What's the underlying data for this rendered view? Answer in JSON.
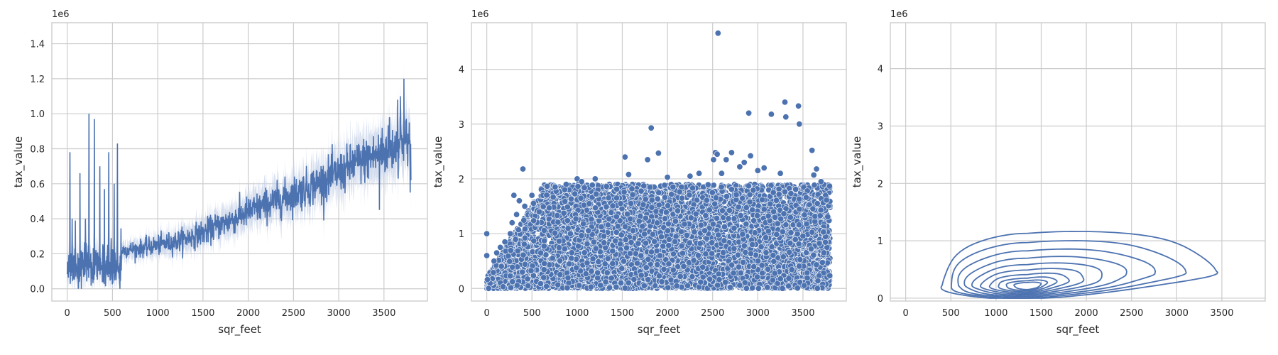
{
  "colors": {
    "series": "#4c72b0",
    "band": "#c5d1e8",
    "grid": "#cccccc",
    "text": "#262626",
    "point_edge": "#ffffff"
  },
  "chart_data": [
    {
      "type": "line",
      "xlabel": "sqr_feet",
      "ylabel": "tax_value",
      "y_offset_label": "1e6",
      "xlim": [
        -170,
        3980
      ],
      "ylim": [
        -0.07,
        1.52
      ],
      "xticks": [
        0,
        500,
        1000,
        1500,
        2000,
        2500,
        3000,
        3500
      ],
      "yticks": [
        0.0,
        0.2,
        0.4,
        0.6,
        0.8,
        1.0,
        1.2,
        1.4
      ],
      "ytick_labels": [
        "0.0",
        "0.2",
        "0.4",
        "0.6",
        "0.8",
        "1.0",
        "1.2",
        "1.4"
      ],
      "grid": true,
      "legend": "none",
      "confidence_band": true,
      "series_mean_points": [
        [
          0,
          0.78
        ],
        [
          600,
          0.22
        ],
        [
          800,
          0.23
        ],
        [
          1000,
          0.25
        ],
        [
          1200,
          0.27
        ],
        [
          1500,
          0.32
        ],
        [
          1800,
          0.39
        ],
        [
          2000,
          0.44
        ],
        [
          2200,
          0.48
        ],
        [
          2500,
          0.54
        ],
        [
          2800,
          0.61
        ],
        [
          3000,
          0.66
        ],
        [
          3200,
          0.72
        ],
        [
          3400,
          0.76
        ],
        [
          3500,
          0.78
        ],
        [
          3600,
          0.8
        ],
        [
          3700,
          0.85
        ],
        [
          3780,
          0.83
        ]
      ],
      "early_spikes": [
        [
          30,
          0.78
        ],
        [
          55,
          0.4
        ],
        [
          90,
          0.39
        ],
        [
          140,
          0.66
        ],
        [
          200,
          0.4
        ],
        [
          240,
          1.0
        ],
        [
          300,
          0.97
        ],
        [
          360,
          0.7
        ],
        [
          410,
          0.57
        ],
        [
          460,
          0.78
        ],
        [
          520,
          0.6
        ],
        [
          555,
          0.83
        ]
      ],
      "late_spikes": [
        [
          3720,
          1.2
        ],
        [
          3650,
          1.08
        ],
        [
          3680,
          1.1
        ],
        [
          3560,
          0.98
        ],
        [
          3480,
          0.92
        ],
        [
          3450,
          0.45
        ],
        [
          3780,
          0.95
        ],
        [
          3790,
          0.55
        ]
      ]
    },
    {
      "type": "scatter",
      "xlabel": "sqr_feet",
      "ylabel": "tax_value",
      "y_offset_label": "1e6",
      "xlim": [
        -170,
        3980
      ],
      "ylim": [
        -0.23,
        4.85
      ],
      "xticks": [
        0,
        500,
        1000,
        1500,
        2000,
        2500,
        3000,
        3500
      ],
      "yticks": [
        0,
        1,
        2,
        3,
        4
      ],
      "ytick_labels": [
        "0",
        "1",
        "2",
        "3",
        "4"
      ],
      "grid": true,
      "legend": "none",
      "dense_region": {
        "x_range": [
          0,
          3800
        ],
        "y_range": [
          0,
          1.9
        ]
      },
      "outliers": [
        [
          0,
          1.0
        ],
        [
          0,
          0.6
        ],
        [
          20,
          0.0
        ],
        [
          80,
          0.5
        ],
        [
          110,
          0.65
        ],
        [
          150,
          0.75
        ],
        [
          200,
          0.85
        ],
        [
          260,
          1.0
        ],
        [
          280,
          1.2
        ],
        [
          300,
          1.7
        ],
        [
          330,
          1.35
        ],
        [
          360,
          1.6
        ],
        [
          400,
          2.18
        ],
        [
          420,
          1.5
        ],
        [
          500,
          1.7
        ],
        [
          1000,
          2.0
        ],
        [
          1050,
          1.95
        ],
        [
          1200,
          2.0
        ],
        [
          1530,
          2.4
        ],
        [
          1570,
          2.08
        ],
        [
          1780,
          2.35
        ],
        [
          1820,
          2.93
        ],
        [
          1900,
          2.47
        ],
        [
          2000,
          2.03
        ],
        [
          2250,
          2.05
        ],
        [
          2350,
          2.1
        ],
        [
          2510,
          2.35
        ],
        [
          2530,
          2.48
        ],
        [
          2550,
          2.45
        ],
        [
          2560,
          4.66
        ],
        [
          2600,
          2.1
        ],
        [
          2650,
          2.35
        ],
        [
          2710,
          2.48
        ],
        [
          2800,
          2.22
        ],
        [
          2850,
          2.3
        ],
        [
          2900,
          3.2
        ],
        [
          2920,
          2.42
        ],
        [
          3000,
          2.15
        ],
        [
          3070,
          2.2
        ],
        [
          3150,
          3.18
        ],
        [
          3250,
          2.1
        ],
        [
          3300,
          3.4
        ],
        [
          3310,
          3.13
        ],
        [
          3450,
          3.33
        ],
        [
          3460,
          3.0
        ],
        [
          3600,
          2.52
        ],
        [
          3620,
          2.07
        ],
        [
          3650,
          2.18
        ],
        [
          3700,
          1.95
        ]
      ]
    },
    {
      "type": "kde",
      "xlabel": "sqr_feet",
      "ylabel": "tax_value",
      "y_offset_label": "1e6",
      "xlim": [
        -170,
        3980
      ],
      "ylim": [
        -0.05,
        4.8
      ],
      "xticks": [
        0,
        500,
        1000,
        1500,
        2000,
        2500,
        3000,
        3500
      ],
      "yticks": [
        0,
        1,
        2,
        3,
        4
      ],
      "ytick_labels": [
        "0",
        "1",
        "2",
        "3",
        "4"
      ],
      "grid": true,
      "legend": "none",
      "density_peak": [
        1350,
        0.22
      ],
      "contour_levels": 10
    }
  ]
}
